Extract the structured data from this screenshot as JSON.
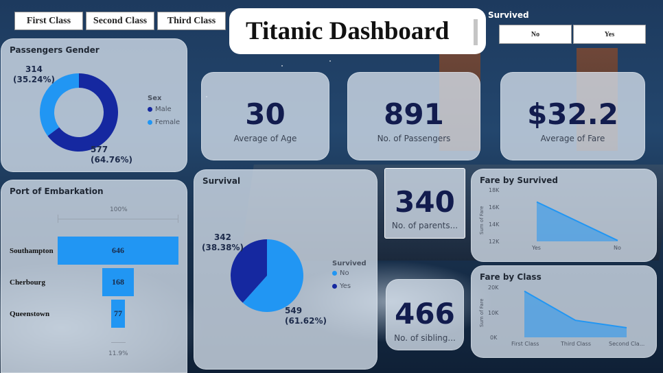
{
  "slicers": {
    "class_buttons": [
      "First Class",
      "Second Class",
      "Third Class"
    ],
    "survived_title": "Survived",
    "survived_buttons": [
      "No",
      "Yes"
    ]
  },
  "title": "Titanic Dashboard",
  "gender": {
    "title": "Passengers Gender",
    "legend_title": "Sex",
    "legend": [
      "Male",
      "Female"
    ],
    "female_label": "314",
    "female_pct": "(35.24%)",
    "male_label": "577",
    "male_pct": "(64.76%)"
  },
  "kpis": {
    "age_value": "30",
    "age_label": "Average of Age",
    "passengers_value": "891",
    "passengers_label": "No. of Passengers",
    "fare_value": "$32.2",
    "fare_label": "Average of Fare",
    "parents_value": "340",
    "parents_label": "No. of parents...",
    "sibling_value": "466",
    "sibling_label": "No. of sibling..."
  },
  "embark": {
    "title": "Port of Embarkation",
    "top_pct": "100%",
    "bottom_pct": "11.9%",
    "rows": [
      {
        "label": "Southampton",
        "value": "646"
      },
      {
        "label": "Cherbourg",
        "value": "168"
      },
      {
        "label": "Queenstown",
        "value": "77"
      }
    ]
  },
  "survival": {
    "title": "Survival",
    "legend_title": "Survived",
    "legend": [
      "No",
      "Yes"
    ],
    "yes_label": "342",
    "yes_pct": "(38.38%)",
    "no_label": "549",
    "no_pct": "(61.62%)"
  },
  "fare_survived": {
    "title": "Fare by Survived",
    "y_axis_title": "Sum of Fare",
    "y_ticks": [
      "18K",
      "16K",
      "14K",
      "12K"
    ],
    "x_ticks": [
      "Yes",
      "No"
    ]
  },
  "fare_class": {
    "title": "Fare by Class",
    "y_axis_title": "Sum of Fare",
    "y_ticks": [
      "20K",
      "10K",
      "0K"
    ],
    "x_ticks": [
      "First Class",
      "Third Class",
      "Second Cla..."
    ]
  },
  "colors": {
    "dark_blue": "#1528a0",
    "light_blue": "#2196f3",
    "kpi_text": "#121c4e"
  },
  "chart_data": [
    {
      "type": "pie",
      "title": "Passengers Gender",
      "categories": [
        "Male",
        "Female"
      ],
      "values": [
        577,
        314
      ],
      "donut": true
    },
    {
      "type": "bar",
      "title": "Port of Embarkation",
      "categories": [
        "Southampton",
        "Cherbourg",
        "Queenstown"
      ],
      "values": [
        646,
        168,
        77
      ]
    },
    {
      "type": "pie",
      "title": "Survival",
      "categories": [
        "No",
        "Yes"
      ],
      "values": [
        549,
        342
      ]
    },
    {
      "type": "area",
      "title": "Fare by Survived",
      "ylabel": "Sum of Fare",
      "categories": [
        "Yes",
        "No"
      ],
      "values": [
        16600,
        12100
      ],
      "ylim": [
        12000,
        18000
      ]
    },
    {
      "type": "area",
      "title": "Fare by Class",
      "ylabel": "Sum of Fare",
      "categories": [
        "First Class",
        "Third Class",
        "Second Class"
      ],
      "values": [
        18200,
        6700,
        3800
      ],
      "ylim": [
        0,
        20000
      ]
    }
  ]
}
